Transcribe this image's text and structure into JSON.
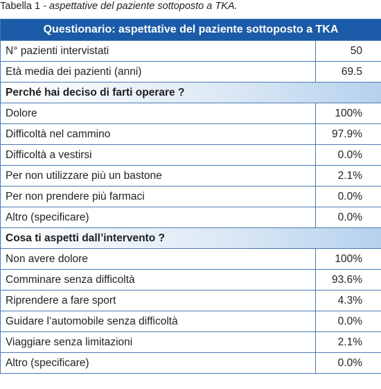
{
  "caption": {
    "prefix": "Tabella 1",
    "separator": " - ",
    "text": "aspettative del paziente sottoposto a TKA."
  },
  "table": {
    "header": "Questionario: aspettative del paziente sottoposto a TKA",
    "intro_rows": [
      {
        "label": "N° pazienti intervistati",
        "value": "50"
      },
      {
        "label": "Età media dei pazienti (anni)",
        "value": "69.5"
      }
    ],
    "sections": [
      {
        "title": "Perché hai deciso di farti operare ?",
        "rows": [
          {
            "label": "Dolore",
            "value": "100%"
          },
          {
            "label": "Difficoltà nel cammino",
            "value": "97.9%"
          },
          {
            "label": "Difficoltà a vestirsi",
            "value": "0.0%"
          },
          {
            "label": "Per non utilizzare più un bastone",
            "value": "2.1%"
          },
          {
            "label": "Per non prendere più farmaci",
            "value": "0.0%"
          },
          {
            "label": "Altro (specificare)",
            "value": "0.0%"
          }
        ]
      },
      {
        "title": "Cosa ti aspetti dall’intervento ?",
        "rows": [
          {
            "label": "Non avere dolore",
            "value": "100%"
          },
          {
            "label": "Comminare senza difficoltà",
            "value": "93.6%"
          },
          {
            "label": "Riprendere a fare sport",
            "value": "4.3%"
          },
          {
            "label": "Guidare l’automobile senza difficoltà",
            "value": "0.0%"
          },
          {
            "label": "Viaggiare senza limitazioni",
            "value": "2.1%"
          },
          {
            "label": "Altro (specificare)",
            "value": "0.0%"
          }
        ]
      }
    ]
  }
}
